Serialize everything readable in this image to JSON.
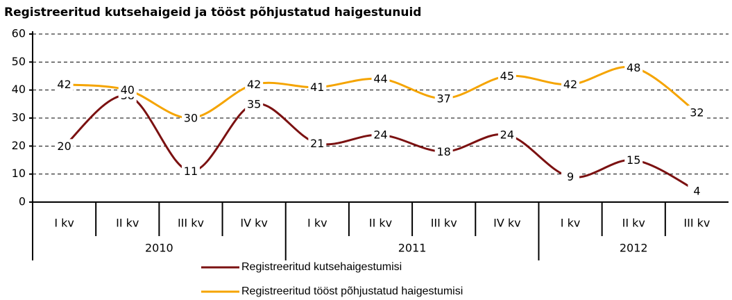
{
  "chart_data": {
    "type": "line",
    "title": "Registreeritud kutsehaigeid ja tööst põhjustatud haigestunuid",
    "groups": [
      {
        "name": "2010",
        "categories": [
          "I kv",
          "II kv",
          "III kv",
          "IV kv"
        ]
      },
      {
        "name": "2011",
        "categories": [
          "I kv",
          "II kv",
          "III kv",
          "IV kv"
        ]
      },
      {
        "name": "2012",
        "categories": [
          "I kv",
          "II kv",
          "III kv"
        ]
      }
    ],
    "series": [
      {
        "name": "Registreeritud kutsehaigestumisi",
        "color": "#7b1111",
        "values": [
          20,
          38,
          11,
          35,
          21,
          24,
          18,
          24,
          9,
          15,
          4
        ]
      },
      {
        "name": "Registreeritud tööst põhjustatud haigestumisi",
        "color": "#f5a400",
        "values": [
          42,
          40,
          30,
          42,
          41,
          44,
          37,
          45,
          42,
          48,
          32
        ]
      }
    ],
    "ylim": [
      0,
      60
    ],
    "yticks": [
      0,
      10,
      20,
      30,
      40,
      50,
      60
    ],
    "grid": true,
    "smooth": true,
    "legend": "bottom"
  }
}
